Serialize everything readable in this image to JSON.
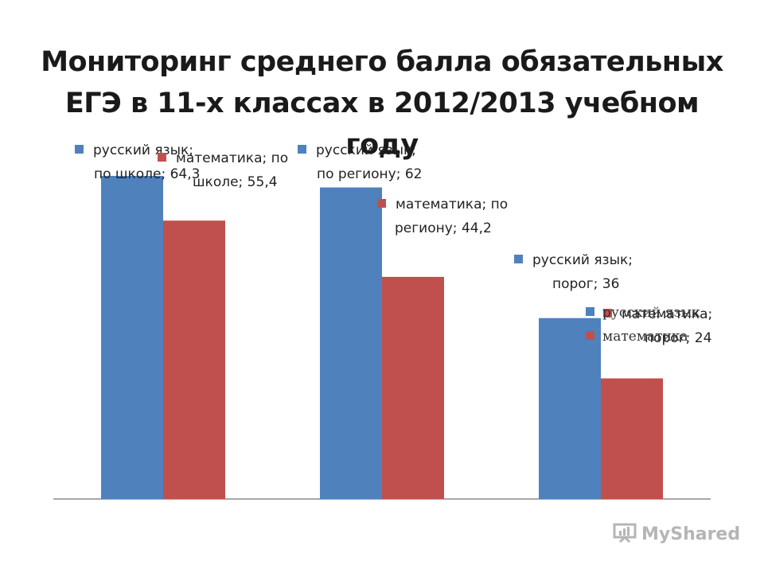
{
  "title": {
    "line1": "Мониторинг среднего балла  обязательных",
    "line2": "ЕГЭ в 11-х классах в 2012/2013 учебном году"
  },
  "chart_data": {
    "type": "bar",
    "title": "Мониторинг среднего балла  обязательных ЕГЭ в 11-х классах в 2012/2013 учебном году",
    "categories": [
      "по школе",
      "по региону",
      "порог"
    ],
    "series": [
      {
        "name": "русский язык",
        "color": "#4f81bd",
        "values": [
          64.3,
          62,
          36
        ]
      },
      {
        "name": "математика",
        "color": "#c0504d",
        "values": [
          55.4,
          44.2,
          24
        ]
      }
    ],
    "ylim": [
      0,
      70
    ],
    "grid": false,
    "legend_position": "right",
    "data_labels": [
      {
        "line1": "русский язык;",
        "line2": "по школе; 64,3"
      },
      {
        "line1": "математика; по",
        "line2": "школе; 55,4"
      },
      {
        "line1": "русский язык;",
        "line2": "по региону; 62"
      },
      {
        "line1": "математика; по",
        "line2": "региону; 44,2"
      },
      {
        "line1": "русский язык;",
        "line2": "порог; 36"
      },
      {
        "line1": "математика;",
        "line2": "порог; 24"
      }
    ]
  },
  "legend": {
    "items": [
      "русский язык",
      "математика"
    ]
  },
  "watermark": "MyShared"
}
